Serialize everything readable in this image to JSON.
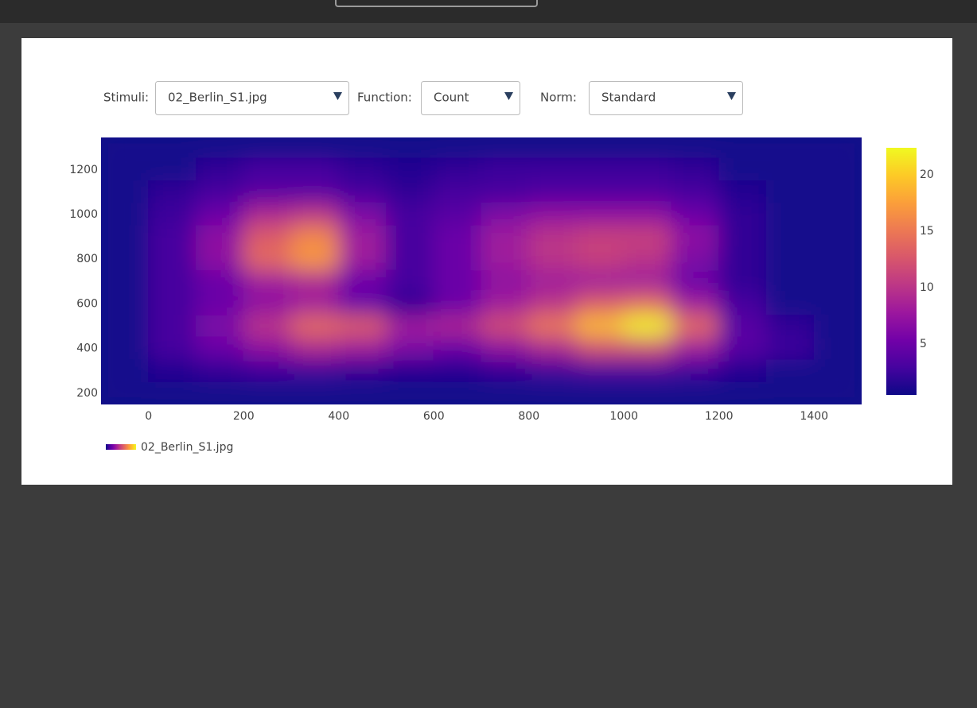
{
  "controls": [
    {
      "label": "Stimuli:",
      "value": "02_Berlin_S1.jpg"
    },
    {
      "label": "Function:",
      "value": "Count"
    },
    {
      "label": "Norm:",
      "value": "Standard"
    }
  ],
  "chart_data": {
    "type": "contour",
    "x": [
      -50,
      50,
      150,
      250,
      350,
      450,
      550,
      650,
      750,
      850,
      950,
      1050,
      1150,
      1250,
      1350,
      1450
    ],
    "y": [
      1300,
      1200,
      1100,
      1000,
      900,
      800,
      700,
      600,
      500,
      400,
      300,
      200
    ],
    "z": [
      [
        1,
        1,
        1,
        1,
        1,
        1,
        1,
        1,
        1,
        1,
        1,
        1,
        1,
        1,
        1,
        1
      ],
      [
        1,
        1,
        2,
        3,
        3,
        2,
        1.5,
        2,
        2.5,
        2.5,
        2.5,
        2.5,
        2,
        1,
        1,
        1
      ],
      [
        1,
        2,
        3,
        4,
        4,
        3,
        2,
        3,
        3,
        3.5,
        3.5,
        3.5,
        3,
        1.5,
        1,
        1
      ],
      [
        1,
        2.5,
        5,
        9,
        10,
        6,
        3,
        4,
        6,
        7,
        7,
        7,
        5,
        2,
        1,
        1
      ],
      [
        1,
        3,
        7,
        13,
        16,
        8,
        3,
        5,
        8,
        10,
        11,
        11,
        7,
        2,
        1,
        1
      ],
      [
        1,
        3,
        7,
        14,
        17,
        8,
        3,
        5,
        8,
        10,
        11,
        10,
        6,
        2,
        1,
        1
      ],
      [
        1,
        3,
        5,
        8,
        9,
        5,
        3,
        5,
        7,
        8,
        8,
        8,
        5,
        2,
        1,
        1
      ],
      [
        1,
        3,
        5,
        7,
        8,
        5,
        2,
        5,
        8,
        10,
        13,
        14,
        8,
        3,
        1,
        1
      ],
      [
        1,
        3,
        6,
        10,
        14,
        13,
        8,
        9,
        12,
        15,
        19,
        22,
        14,
        4,
        2,
        1
      ],
      [
        1,
        3,
        5,
        7,
        9,
        8,
        6,
        5,
        7,
        9,
        12,
        12,
        8,
        4,
        2.5,
        1
      ],
      [
        1,
        1.5,
        2,
        2.5,
        2.5,
        2,
        1.5,
        1.5,
        2,
        2.5,
        3,
        3,
        2.5,
        1.5,
        1,
        1
      ],
      [
        1,
        1,
        1,
        1,
        1,
        1,
        1,
        1,
        1,
        1,
        1,
        1,
        1,
        1,
        1,
        1
      ]
    ],
    "xlim": [
      -100,
      1500
    ],
    "xticks": [
      0,
      200,
      400,
      600,
      800,
      1000,
      1200,
      1400
    ],
    "ylim": [
      150,
      1345
    ],
    "yticks": [
      200,
      400,
      600,
      800,
      1000,
      1200
    ],
    "colorscale": [
      "#0d0887",
      "#46039f",
      "#7201a8",
      "#9c179e",
      "#bd3786",
      "#d8576b",
      "#ed7953",
      "#fb9f3a",
      "#fdca26",
      "#f0f921"
    ],
    "colorbar": {
      "lim": [
        0.5,
        22.4
      ],
      "ticks": [
        5,
        10,
        15,
        20
      ]
    },
    "legend": "02_Berlin_S1.jpg"
  }
}
